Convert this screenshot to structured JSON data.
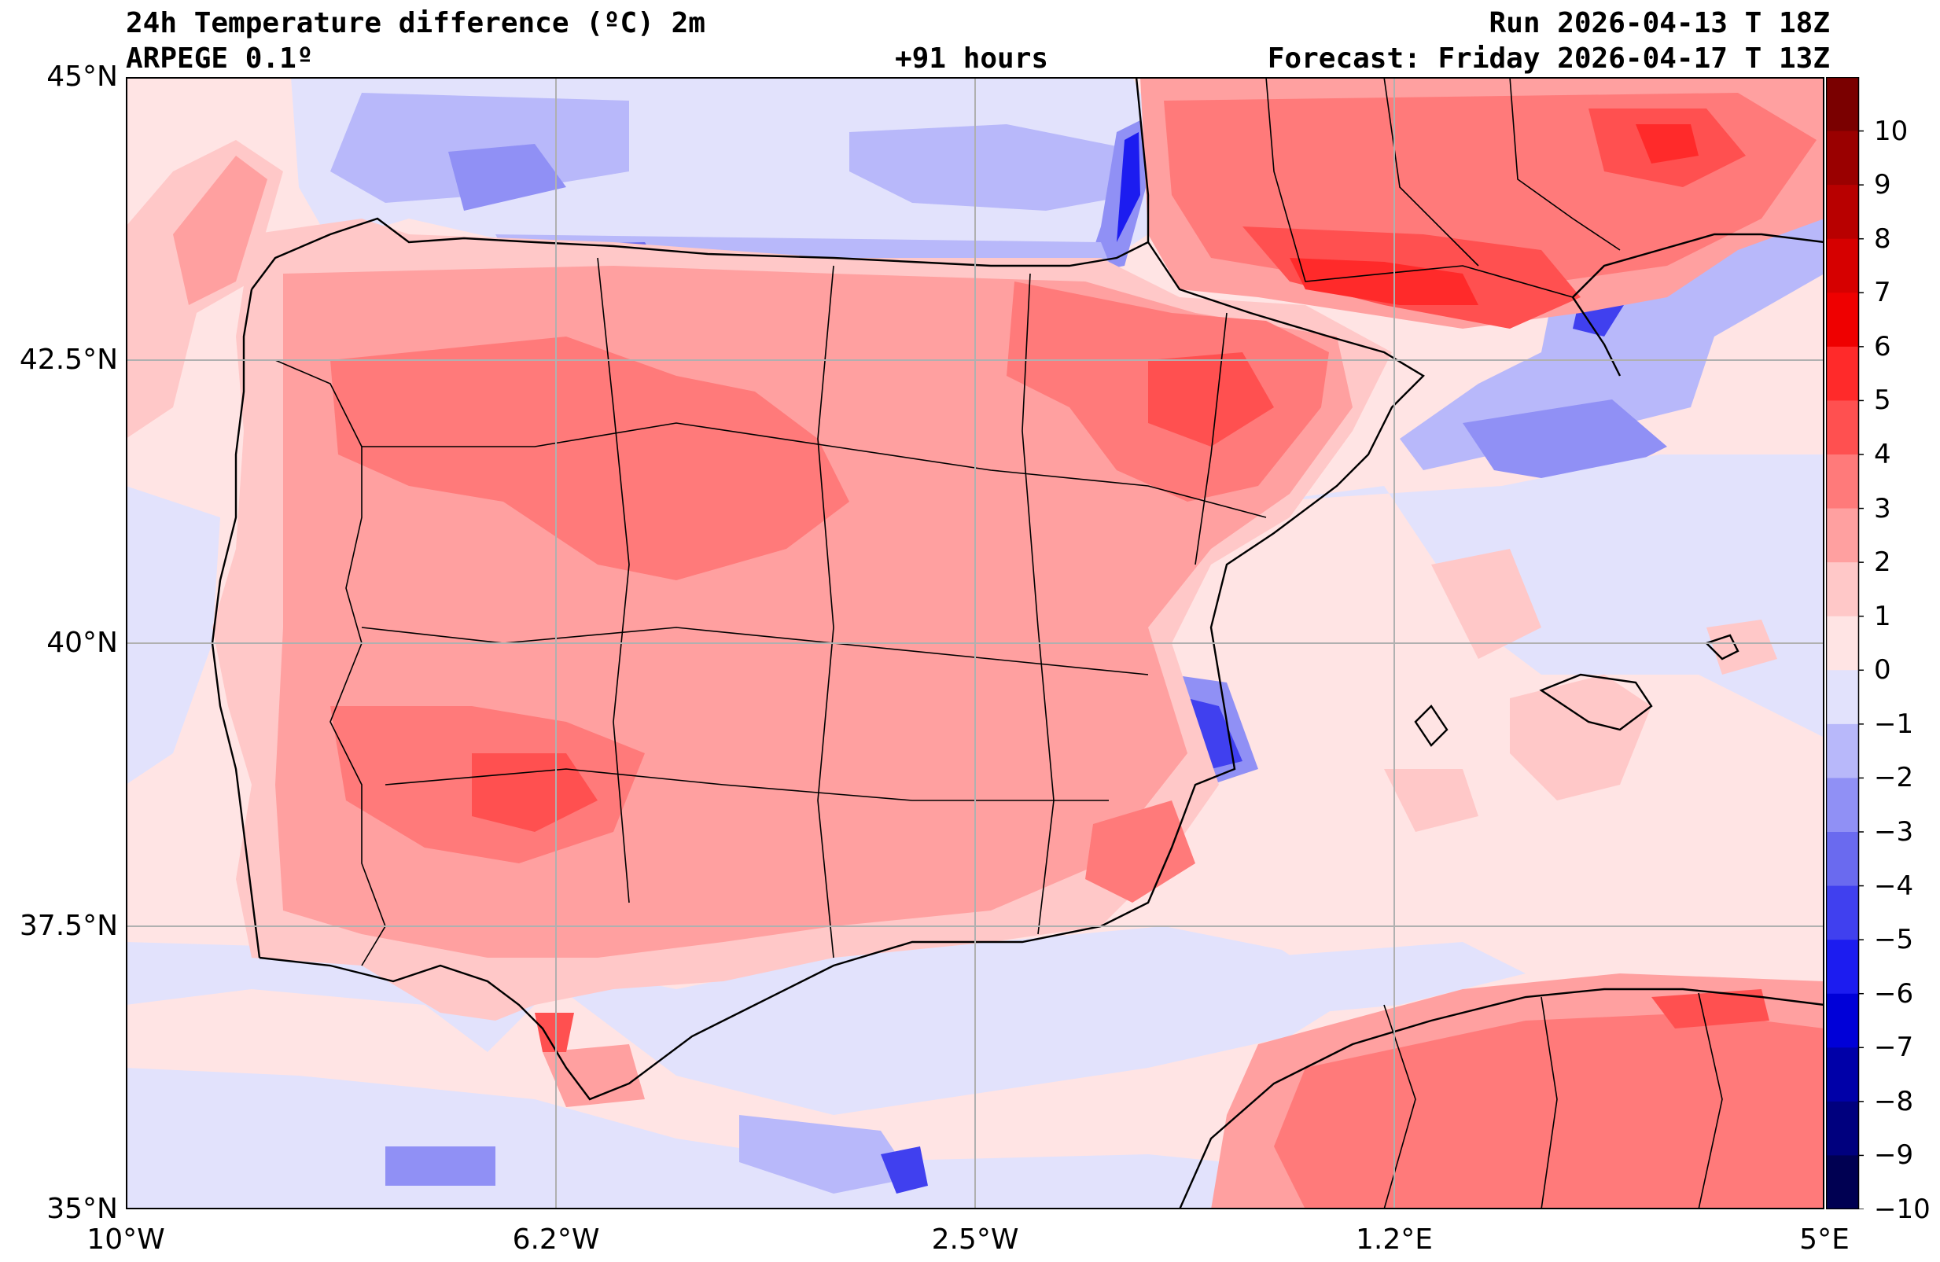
{
  "header": {
    "title": "24h Temperature difference (ºC) 2m",
    "model": "ARPEGE 0.1º",
    "lead": "+91 hours",
    "run": "Run 2026-04-13 T 18Z",
    "forecast": "Forecast: Friday 2026-04-17 T 13Z"
  },
  "axes": {
    "y_ticks": [
      "45°N",
      "42.5°N",
      "40°N",
      "37.5°N",
      "35°N"
    ],
    "x_ticks": [
      "10°W",
      "6.2°W",
      "2.5°W",
      "1.2°E",
      "5°E"
    ],
    "lat_range": [
      35,
      45
    ],
    "lon_range": [
      -10,
      5
    ],
    "grid": true
  },
  "colorbar": {
    "tick_labels": [
      "10",
      "9",
      "8",
      "7",
      "6",
      "5",
      "4",
      "3",
      "2",
      "1",
      "0",
      "−1",
      "−2",
      "−3",
      "−4",
      "−5",
      "−6",
      "−7",
      "−8",
      "−9",
      "−10"
    ],
    "levels": [
      10,
      9,
      8,
      7,
      6,
      5,
      4,
      3,
      2,
      1,
      0,
      -1,
      -2,
      -3,
      -4,
      -5,
      -6,
      -7,
      -8,
      -9,
      -10
    ],
    "colors": [
      "#7a0000",
      "#9a0000",
      "#b80000",
      "#d60000",
      "#ef0000",
      "#ff2a2a",
      "#ff5050",
      "#ff7a7a",
      "#ffa0a0",
      "#ffc8c8",
      "#ffe4e4",
      "#e2e2fc",
      "#b8b8fa",
      "#9090f5",
      "#6a6aef",
      "#4040ef",
      "#1c1cf0",
      "#0000d8",
      "#0000a8",
      "#00007e",
      "#000052"
    ]
  },
  "legend_colors": {
    "sea_neutral": "#ffe4e4",
    "neg_light": "#e2e2fc",
    "neg_mid": "#b8b8fa",
    "pos_light": "#ffc8c8",
    "pos_mid": "#ffa0a0",
    "pos_strong": "#ff7a7a",
    "pos_vstrong": "#ff5050"
  }
}
